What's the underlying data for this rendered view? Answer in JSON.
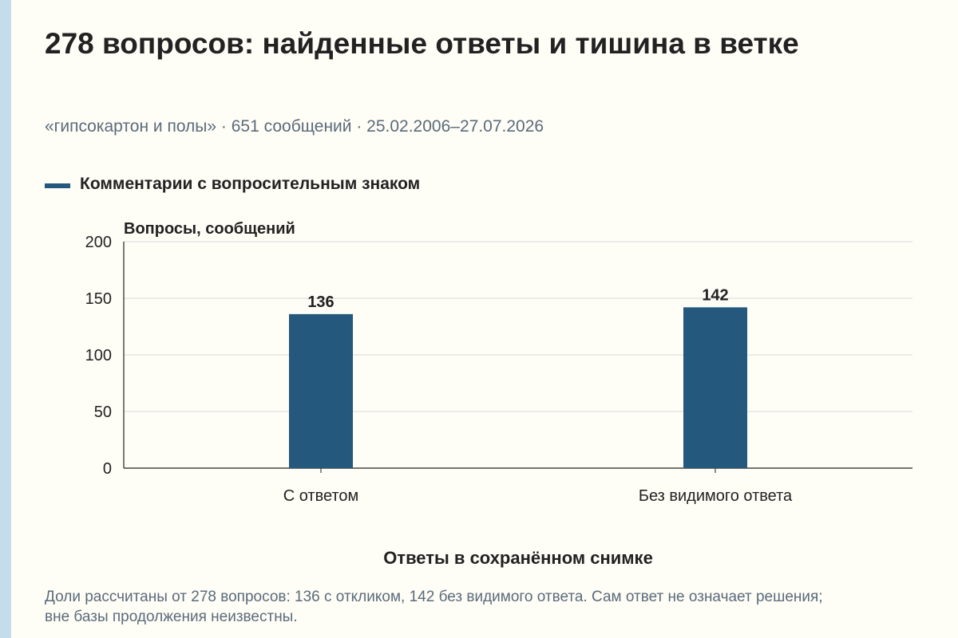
{
  "title": "278 вопросов: найденные ответы и тишина в ветке",
  "subtitle": "«гипсокартон и полы» · 651 сообщений · 25.02.2006–27.07.2026",
  "footnote": "Доли рассчитаны от 278 вопросов: 136 с откликом, 142 без видимого ответа. Сам ответ не означает решения; вне базы продолжения неизвестны.",
  "colors": {
    "bar": "#24587c",
    "grid": "#d9d9d9",
    "axis": "#222222"
  },
  "chart_data": {
    "type": "bar",
    "categories": [
      "С ответом",
      "Без видимого ответа"
    ],
    "series": [
      {
        "name": "Комментарии с вопросительным знаком",
        "values": [
          136,
          142
        ]
      }
    ],
    "data_labels": [
      "136",
      "142"
    ],
    "ylabel": "Вопросы, сообщений",
    "xlabel": "Ответы в сохранённом снимке",
    "ylim": [
      0,
      200
    ],
    "yticks": [
      0,
      50,
      100,
      150,
      200
    ],
    "ytick_labels": [
      "0",
      "50",
      "100",
      "150",
      "200"
    ],
    "grid": true,
    "legend": "top-left"
  }
}
